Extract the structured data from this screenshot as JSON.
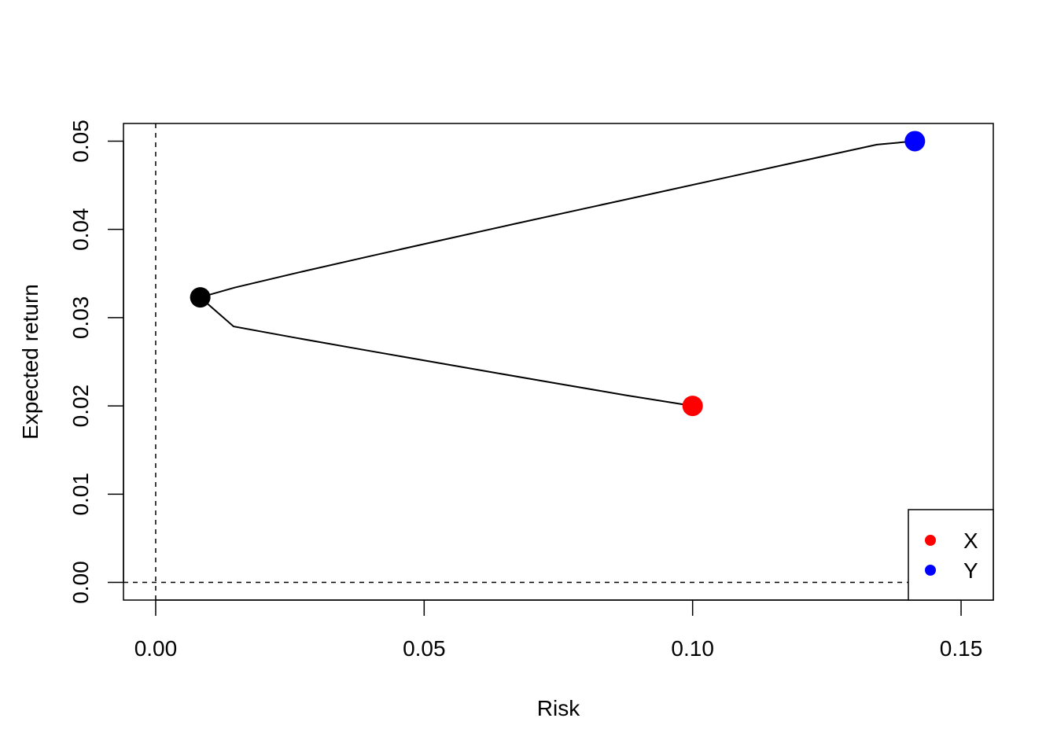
{
  "chart_data": {
    "type": "scatter",
    "xlabel": "Risk",
    "ylabel": "Expected return",
    "xlim": [
      -0.006,
      0.156
    ],
    "ylim": [
      -0.002,
      0.052
    ],
    "x_ticks": [
      "0.00",
      "0.05",
      "0.10",
      "0.15"
    ],
    "x_tick_values": [
      0.0,
      0.05,
      0.1,
      0.15
    ],
    "y_ticks": [
      "0.00",
      "0.01",
      "0.02",
      "0.03",
      "0.04",
      "0.05"
    ],
    "y_tick_values": [
      0.0,
      0.01,
      0.02,
      0.03,
      0.04,
      0.05
    ],
    "reference_lines": {
      "vertical_x": 0,
      "horizontal_y": 0,
      "style": "dashed"
    },
    "points": [
      {
        "name": "X",
        "x": 0.1,
        "y": 0.02,
        "color": "#ff0000"
      },
      {
        "name": "Y",
        "x": 0.1414,
        "y": 0.05,
        "color": "#0000ff"
      },
      {
        "name": "",
        "x": 0.0083,
        "y": 0.0323,
        "color": "#000000"
      }
    ],
    "frontier": {
      "color": "#000000",
      "x": [
        0.1,
        0.0876,
        0.0752,
        0.0628,
        0.0505,
        0.0383,
        0.0262,
        0.0145,
        0.0083,
        0.0147,
        0.0272,
        0.0402,
        0.0534,
        0.0667,
        0.0802,
        0.0937,
        0.1072,
        0.1207,
        0.1343,
        0.1414
      ],
      "y": [
        0.02,
        0.0212,
        0.0225,
        0.0238,
        0.0251,
        0.0264,
        0.0277,
        0.029,
        0.0323,
        0.0334,
        0.0352,
        0.037,
        0.0388,
        0.0406,
        0.0424,
        0.0442,
        0.046,
        0.0478,
        0.0496,
        0.05
      ]
    },
    "legend": {
      "position": "bottom-right",
      "entries": [
        {
          "label": "X",
          "color": "#ff0000"
        },
        {
          "label": "Y",
          "color": "#0000ff"
        }
      ]
    },
    "grid": false
  }
}
